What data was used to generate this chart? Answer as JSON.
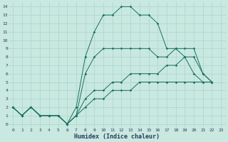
{
  "xlabel": "Humidex (Indice chaleur)",
  "bg_color": "#c8e8e0",
  "grid_color": "#b0d8d0",
  "line_color": "#1a7060",
  "xlim_min": -0.5,
  "xlim_max": 23.5,
  "ylim_min": -0.5,
  "ylim_max": 14.5,
  "xtick_values": [
    0,
    1,
    2,
    3,
    4,
    5,
    6,
    7,
    8,
    9,
    10,
    11,
    12,
    13,
    14,
    15,
    16,
    17,
    18,
    19,
    20,
    21,
    22,
    23
  ],
  "ytick_values": [
    0,
    1,
    2,
    3,
    4,
    5,
    6,
    7,
    8,
    9,
    10,
    11,
    12,
    13,
    14
  ],
  "series": [
    {
      "x": [
        0,
        1,
        2,
        3,
        4,
        5,
        6,
        7,
        8,
        9,
        10,
        11,
        12,
        13,
        14,
        15,
        16,
        17,
        18,
        19,
        20,
        21,
        22
      ],
      "y": [
        2,
        1,
        2,
        1,
        1,
        1,
        0,
        2,
        8,
        11,
        13,
        13,
        14,
        14,
        13,
        13,
        12,
        9,
        9,
        8,
        6,
        5,
        5
      ]
    },
    {
      "x": [
        0,
        1,
        2,
        3,
        4,
        5,
        6,
        7,
        8,
        9,
        10,
        11,
        12,
        13,
        14,
        15,
        16,
        17,
        18,
        19,
        20,
        21,
        22
      ],
      "y": [
        2,
        1,
        2,
        1,
        1,
        1,
        0,
        1,
        6,
        8,
        9,
        9,
        9,
        9,
        9,
        9,
        8,
        8,
        9,
        9,
        9,
        6,
        5
      ]
    },
    {
      "x": [
        0,
        1,
        2,
        3,
        4,
        5,
        6,
        7,
        8,
        9,
        10,
        11,
        12,
        13,
        14,
        15,
        16,
        17,
        18,
        19,
        20,
        21,
        22
      ],
      "y": [
        2,
        1,
        2,
        1,
        1,
        1,
        0,
        1,
        3,
        4,
        4,
        5,
        5,
        6,
        6,
        6,
        6,
        7,
        7,
        8,
        8,
        6,
        5
      ]
    },
    {
      "x": [
        0,
        1,
        2,
        3,
        4,
        5,
        6,
        7,
        8,
        9,
        10,
        11,
        12,
        13,
        14,
        15,
        16,
        17,
        18,
        19,
        20,
        21,
        22
      ],
      "y": [
        2,
        1,
        2,
        1,
        1,
        1,
        0,
        1,
        2,
        3,
        3,
        4,
        4,
        4,
        5,
        5,
        5,
        5,
        5,
        5,
        5,
        5,
        5
      ]
    }
  ]
}
